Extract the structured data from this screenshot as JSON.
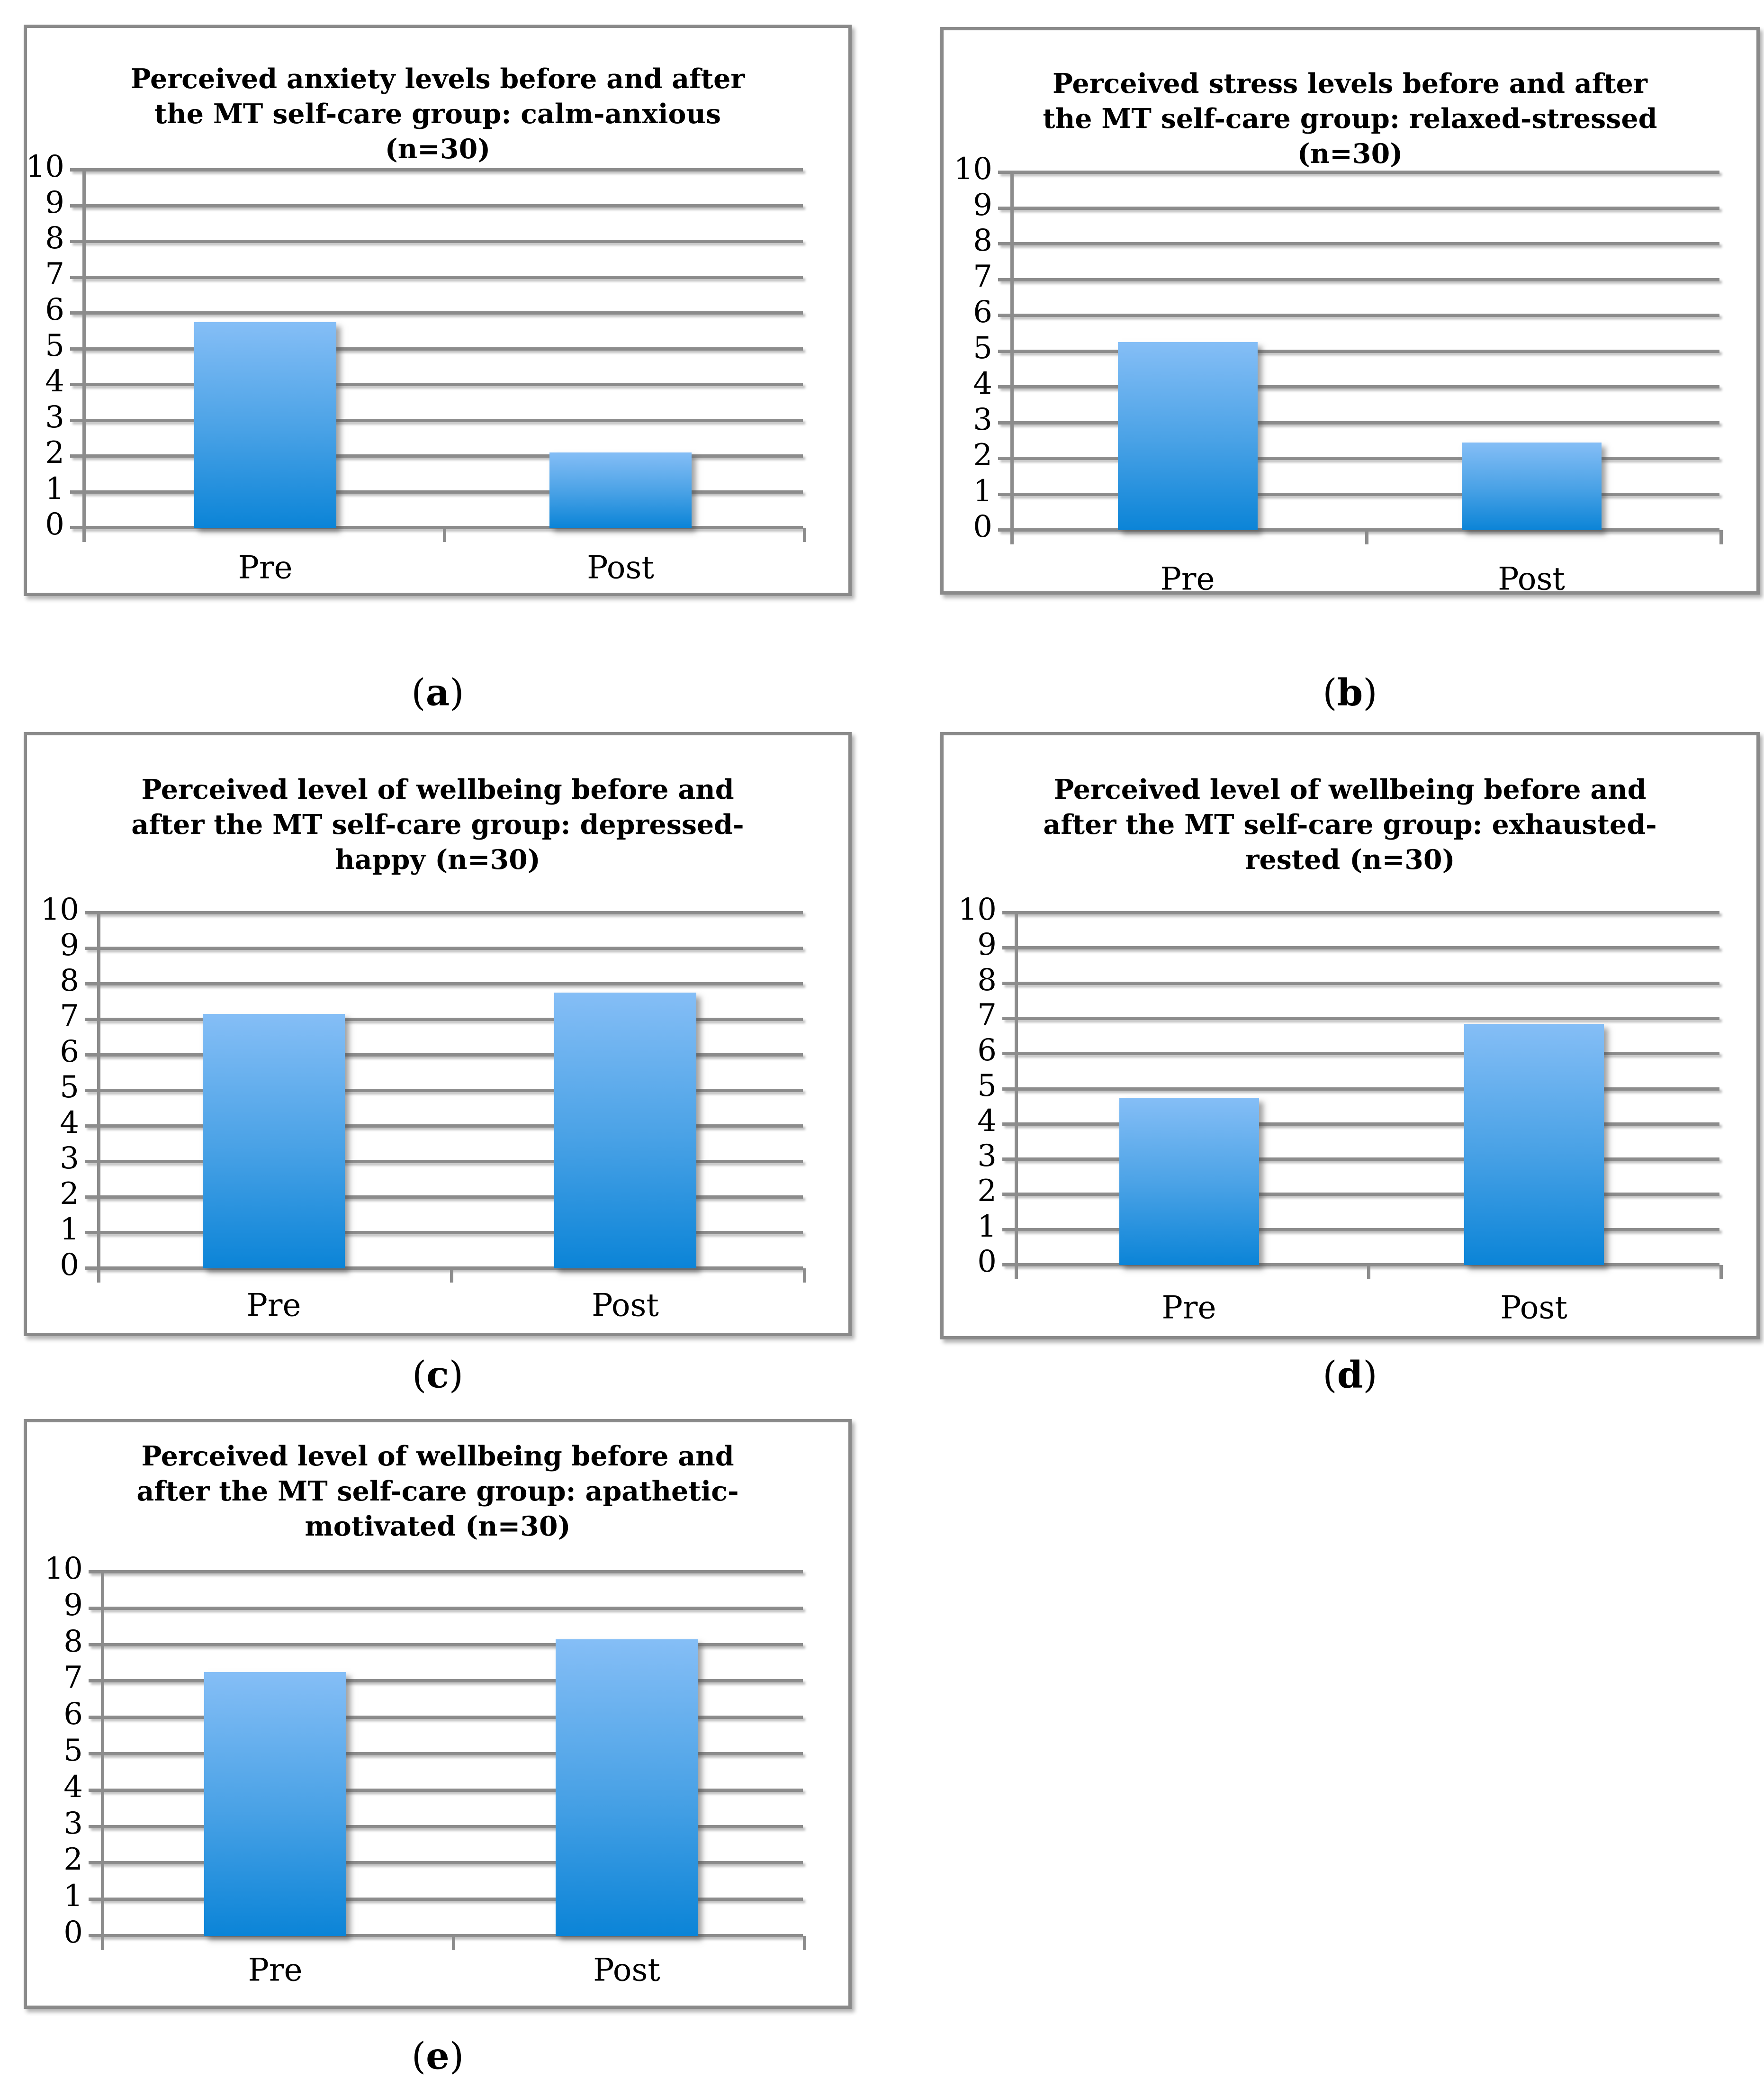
{
  "colors": {
    "bar_gradient_top": "#85BEF6",
    "bar_gradient_mid": "#4AA2E6",
    "bar_gradient_bottom": "#0B84D7",
    "gridline": "#8C8C8C",
    "box_border": "#8A8A8A",
    "text": "#000000",
    "background": "#FFFFFF"
  },
  "chart_data": [
    {
      "id": "a",
      "type": "bar",
      "title": "Perceived anxiety levels before and after the MT self-care group: calm-anxious (n=30)",
      "title_lines": [
        "Perceived anxiety levels before and after",
        "the MT self-care group: calm-anxious",
        "(n=30)"
      ],
      "categories": [
        "Pre",
        "Post"
      ],
      "values": [
        5.7,
        2.05
      ],
      "xlabel": "",
      "ylabel": "",
      "ylim": [
        0,
        10
      ],
      "yticks": [
        "10",
        "9",
        "8",
        "7",
        "6",
        "5",
        "4",
        "3",
        "2",
        "1",
        "0"
      ],
      "grid": true,
      "legend": "none",
      "caption": {
        "open": "(",
        "letter": "a",
        "close": ")"
      }
    },
    {
      "id": "b",
      "type": "bar",
      "title": "Perceived stress levels before and after the MT self-care group: relaxed-stressed (n=30)",
      "title_lines": [
        "Perceived stress levels before and after",
        "the MT self-care group: relaxed-stressed",
        "(n=30)"
      ],
      "categories": [
        "Pre",
        "Post"
      ],
      "values": [
        5.2,
        2.4
      ],
      "xlabel": "",
      "ylabel": "",
      "ylim": [
        0,
        10
      ],
      "yticks": [
        "10",
        "9",
        "8",
        "7",
        "6",
        "5",
        "4",
        "3",
        "2",
        "1",
        "0"
      ],
      "grid": true,
      "legend": "none",
      "caption": {
        "open": "(",
        "letter": "b",
        "close": ")"
      }
    },
    {
      "id": "c",
      "type": "bar",
      "title": "Perceived level of wellbeing before and after the MT self-care group: depressed-happy (n=30)",
      "title_lines": [
        "Perceived level of wellbeing before and",
        "after the MT self-care group: depressed-",
        "happy (n=30)"
      ],
      "categories": [
        "Pre",
        "Post"
      ],
      "values": [
        7.1,
        7.7
      ],
      "xlabel": "",
      "ylabel": "",
      "ylim": [
        0,
        10
      ],
      "yticks": [
        "10",
        "9",
        "8",
        "7",
        "6",
        "5",
        "4",
        "3",
        "2",
        "1",
        "0"
      ],
      "grid": true,
      "legend": "none",
      "caption": {
        "open": "(",
        "letter": "c",
        "close": ")"
      }
    },
    {
      "id": "d",
      "type": "bar",
      "title": "Perceived level of wellbeing before and after the MT self-care group: exhausted-rested (n=30)",
      "title_lines": [
        "Perceived level of wellbeing before and",
        "after the MT self-care group: exhausted-",
        "rested (n=30)"
      ],
      "categories": [
        "Pre",
        "Post"
      ],
      "values": [
        4.7,
        6.8
      ],
      "xlabel": "",
      "ylabel": "",
      "ylim": [
        0,
        10
      ],
      "yticks": [
        "10",
        "9",
        "8",
        "7",
        "6",
        "5",
        "4",
        "3",
        "2",
        "1",
        "0"
      ],
      "grid": true,
      "legend": "none",
      "caption": {
        "open": "(",
        "letter": "d",
        "close": ")"
      }
    },
    {
      "id": "e",
      "type": "bar",
      "title": "Perceived level of wellbeing before and after the MT self-care group: apathetic-motivated (n=30)",
      "title_lines": [
        "Perceived level of wellbeing before and",
        "after the MT self-care group: apathetic-",
        "motivated (n=30)"
      ],
      "categories": [
        "Pre",
        "Post"
      ],
      "values": [
        7.2,
        8.1
      ],
      "xlabel": "",
      "ylabel": "",
      "ylim": [
        0,
        10
      ],
      "yticks": [
        "10",
        "9",
        "8",
        "7",
        "6",
        "5",
        "4",
        "3",
        "2",
        "1",
        "0"
      ],
      "grid": true,
      "legend": "none",
      "caption": {
        "open": "(",
        "letter": "e",
        "close": ")"
      }
    }
  ]
}
